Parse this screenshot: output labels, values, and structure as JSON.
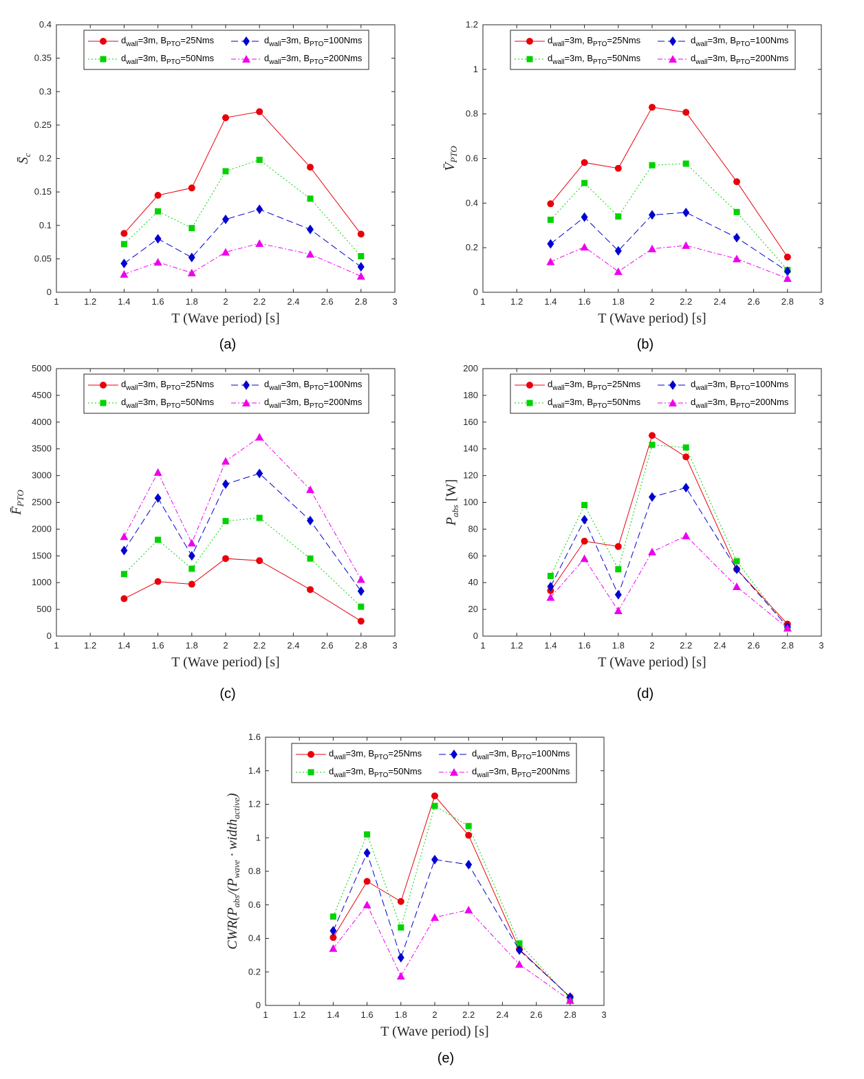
{
  "chart_data": [
    {
      "type": "line",
      "caption": "(a)",
      "xlabel": "T (Wave period) [s]",
      "ylabel": "S̄c",
      "xlim": [
        1,
        3
      ],
      "ylim": [
        0,
        0.4
      ],
      "xticks": [
        "1",
        "1.2",
        "1.4",
        "1.6",
        "1.8",
        "2",
        "2.2",
        "2.4",
        "2.6",
        "2.8",
        "3"
      ],
      "yticks": [
        "0",
        "0.05",
        "0.1",
        "0.15",
        "0.2",
        "0.25",
        "0.3",
        "0.35",
        "0.4"
      ],
      "x": [
        1.4,
        1.6,
        1.8,
        2.0,
        2.2,
        2.5,
        2.8
      ],
      "series": [
        {
          "name": "dwall=3m, BPTO=25Nms",
          "values": [
            0.088,
            0.145,
            0.156,
            0.261,
            0.27,
            0.187,
            0.087
          ]
        },
        {
          "name": "dwall=3m, BPTO=50Nms",
          "values": [
            0.072,
            0.121,
            0.096,
            0.181,
            0.198,
            0.14,
            0.054
          ]
        },
        {
          "name": "dwall=3m, BPTO=100Nms",
          "values": [
            0.043,
            0.08,
            0.052,
            0.109,
            0.124,
            0.094,
            0.038
          ]
        },
        {
          "name": "dwall=3m, BPTO=200Nms",
          "values": [
            0.027,
            0.045,
            0.029,
            0.06,
            0.073,
            0.057,
            0.024
          ]
        }
      ]
    },
    {
      "type": "line",
      "caption": "(b)",
      "xlabel": "T (Wave period) [s]",
      "ylabel": "V̄PTO",
      "xlim": [
        1,
        3
      ],
      "ylim": [
        0,
        1.2
      ],
      "xticks": [
        "1",
        "1.2",
        "1.4",
        "1.6",
        "1.8",
        "2",
        "2.2",
        "2.4",
        "2.6",
        "2.8",
        "3"
      ],
      "yticks": [
        "0",
        "0.2",
        "0.4",
        "0.6",
        "0.8",
        "1",
        "1.2"
      ],
      "x": [
        1.4,
        1.6,
        1.8,
        2.0,
        2.2,
        2.5,
        2.8
      ],
      "series": [
        {
          "name": "dwall=3m, BPTO=25Nms",
          "values": [
            0.397,
            0.582,
            0.556,
            0.83,
            0.807,
            0.496,
            0.158
          ]
        },
        {
          "name": "dwall=3m, BPTO=50Nms",
          "values": [
            0.325,
            0.49,
            0.34,
            0.57,
            0.577,
            0.36,
            0.1
          ]
        },
        {
          "name": "dwall=3m, BPTO=100Nms",
          "values": [
            0.217,
            0.337,
            0.186,
            0.347,
            0.358,
            0.245,
            0.094
          ]
        },
        {
          "name": "dwall=3m, BPTO=200Nms",
          "values": [
            0.137,
            0.203,
            0.093,
            0.195,
            0.21,
            0.15,
            0.062
          ]
        }
      ]
    },
    {
      "type": "line",
      "caption": "(c)",
      "xlabel": "T (Wave period) [s]",
      "ylabel": "F̄PTO",
      "xlim": [
        1,
        3
      ],
      "ylim": [
        0,
        5000
      ],
      "xticks": [
        "1",
        "1.2",
        "1.4",
        "1.6",
        "1.8",
        "2",
        "2.2",
        "2.4",
        "2.6",
        "2.8",
        "3"
      ],
      "yticks": [
        "0",
        "500",
        "1000",
        "1500",
        "2000",
        "2500",
        "3000",
        "3500",
        "4000",
        "4500",
        "5000"
      ],
      "x": [
        1.4,
        1.6,
        1.8,
        2.0,
        2.2,
        2.5,
        2.8
      ],
      "series": [
        {
          "name": "dwall=3m, BPTO=25Nms",
          "values": [
            700,
            1020,
            970,
            1450,
            1410,
            870,
            280
          ]
        },
        {
          "name": "dwall=3m, BPTO=50Nms",
          "values": [
            1160,
            1800,
            1260,
            2150,
            2210,
            1450,
            550
          ]
        },
        {
          "name": "dwall=3m, BPTO=100Nms",
          "values": [
            1600,
            2580,
            1500,
            2840,
            3040,
            2160,
            840
          ]
        },
        {
          "name": "dwall=3m, BPTO=200Nms",
          "values": [
            1860,
            3060,
            1740,
            3270,
            3720,
            2740,
            1060
          ]
        }
      ]
    },
    {
      "type": "line",
      "caption": "(d)",
      "xlabel": "T (Wave period) [s]",
      "ylabel": "Pabs [W]",
      "xlim": [
        1,
        3
      ],
      "ylim": [
        0,
        200
      ],
      "xticks": [
        "1",
        "1.2",
        "1.4",
        "1.6",
        "1.8",
        "2",
        "2.2",
        "2.4",
        "2.6",
        "2.8",
        "3"
      ],
      "yticks": [
        "0",
        "20",
        "40",
        "60",
        "80",
        "100",
        "120",
        "140",
        "160",
        "180",
        "200"
      ],
      "x": [
        1.4,
        1.6,
        1.8,
        2.0,
        2.2,
        2.5,
        2.8
      ],
      "series": [
        {
          "name": "dwall=3m, BPTO=25Nms",
          "values": [
            34,
            71,
            67,
            150,
            134,
            50,
            9
          ]
        },
        {
          "name": "dwall=3m, BPTO=50Nms",
          "values": [
            45,
            98,
            50,
            143,
            141,
            56,
            6
          ]
        },
        {
          "name": "dwall=3m, BPTO=100Nms",
          "values": [
            37,
            87,
            31,
            104,
            111,
            50,
            7
          ]
        },
        {
          "name": "dwall=3m, BPTO=200Nms",
          "values": [
            29,
            58,
            19,
            63,
            75,
            37,
            6
          ]
        }
      ]
    },
    {
      "type": "line",
      "caption": "(e)",
      "xlabel": "T (Wave period) [s]",
      "ylabel": "CWR(Pabs/(Pwave · widthactive)",
      "xlim": [
        1,
        3
      ],
      "ylim": [
        0,
        1.6
      ],
      "xticks": [
        "1",
        "1.2",
        "1.4",
        "1.6",
        "1.8",
        "2",
        "2.2",
        "2.4",
        "2.6",
        "2.8",
        "3"
      ],
      "yticks": [
        "0",
        "0.2",
        "0.4",
        "0.6",
        "0.8",
        "1",
        "1.2",
        "1.4",
        "1.6"
      ],
      "x": [
        1.4,
        1.6,
        1.8,
        2.0,
        2.2,
        2.5,
        2.8
      ],
      "series": [
        {
          "name": "dwall=3m, BPTO=25Nms",
          "values": [
            0.405,
            0.74,
            0.62,
            1.25,
            1.015,
            0.335,
            0.05
          ]
        },
        {
          "name": "dwall=3m, BPTO=50Nms",
          "values": [
            0.53,
            1.02,
            0.465,
            1.19,
            1.07,
            0.37,
            0.04
          ]
        },
        {
          "name": "dwall=3m, BPTO=100Nms",
          "values": [
            0.445,
            0.91,
            0.285,
            0.87,
            0.84,
            0.33,
            0.05
          ]
        },
        {
          "name": "dwall=3m, BPTO=200Nms",
          "values": [
            0.34,
            0.6,
            0.175,
            0.525,
            0.57,
            0.245,
            0.03
          ]
        }
      ]
    }
  ],
  "legend": [
    {
      "base": "d",
      "sub1": "wall",
      "mid": "=3m, B",
      "sub2": "PTO",
      "tail": "=25Nms"
    },
    {
      "base": "d",
      "sub1": "wall",
      "mid": "=3m, B",
      "sub2": "PTO",
      "tail": "=100Nms"
    },
    {
      "base": "d",
      "sub1": "wall",
      "mid": "=3m, B",
      "sub2": "PTO",
      "tail": "=50Nms"
    },
    {
      "base": "d",
      "sub1": "wall",
      "mid": "=3m, B",
      "sub2": "PTO",
      "tail": "=200Nms"
    }
  ],
  "ylabel_parts": [
    {
      "main": "S̄",
      "sub": "c",
      "tail": ""
    },
    {
      "main": "V̄",
      "sub": "PTO",
      "tail": ""
    },
    {
      "main": "F̄",
      "sub": "PTO",
      "tail": ""
    },
    {
      "main": "P",
      "sub": "abs",
      "tail": " [W]"
    },
    {
      "main": "CWR(P",
      "sub": "abs",
      "tail": "/(P",
      "sub2": "wave",
      "tail2": " · width",
      "sub3": "active",
      "tail3": ")"
    }
  ],
  "series_colors": [
    "#e8000b",
    "#00d200",
    "#0000d0",
    "#ee00ee"
  ]
}
